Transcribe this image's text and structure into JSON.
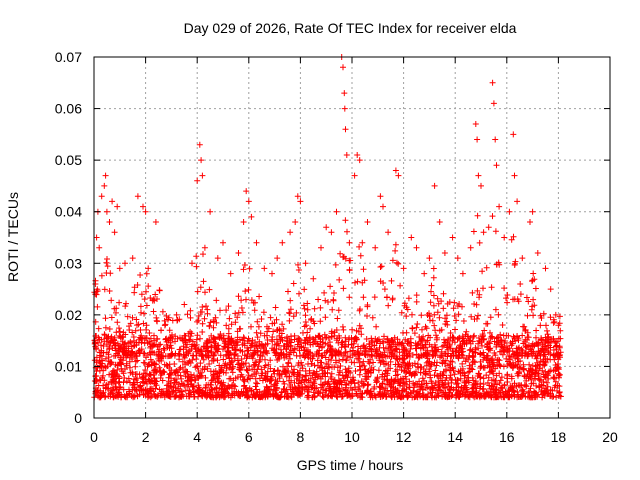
{
  "chart_data": {
    "type": "scatter",
    "title": "Day 029 of 2026, Rate Of TEC Index for receiver elda",
    "xlabel": "GPS time / hours",
    "ylabel": "ROTI / TECUs",
    "xlim": [
      0,
      20
    ],
    "ylim": [
      0,
      0.07
    ],
    "xticks": [
      0,
      2,
      4,
      6,
      8,
      10,
      12,
      14,
      16,
      18,
      20
    ],
    "yticks": [
      0,
      0.01,
      0.02,
      0.03,
      0.04,
      0.05,
      0.06,
      0.07
    ],
    "ytick_labels": [
      "0",
      "0.01",
      "0.02",
      "0.03",
      "0.04",
      "0.05",
      "0.06",
      "0.07"
    ],
    "grid": true,
    "marker": "plus",
    "color": "#ff0000",
    "data_range_x": [
      0,
      18.1
    ],
    "series": [
      {
        "name": "",
        "points": [
          [
            0.05,
            0.024
          ],
          [
            0.1,
            0.035
          ],
          [
            0.15,
            0.04
          ],
          [
            0.2,
            0.033
          ],
          [
            0.3,
            0.043
          ],
          [
            0.4,
            0.045
          ],
          [
            0.45,
            0.047
          ],
          [
            0.5,
            0.04
          ],
          [
            0.6,
            0.038
          ],
          [
            0.7,
            0.042
          ],
          [
            0.8,
            0.036
          ],
          [
            0.9,
            0.041
          ],
          [
            1.0,
            0.029
          ],
          [
            1.2,
            0.03
          ],
          [
            1.5,
            0.031
          ],
          [
            1.7,
            0.043
          ],
          [
            1.9,
            0.041
          ],
          [
            2.0,
            0.04
          ],
          [
            2.1,
            0.029
          ],
          [
            2.4,
            0.038
          ],
          [
            2.6,
            0.017
          ],
          [
            2.9,
            0.015
          ],
          [
            3.2,
            0.02
          ],
          [
            3.5,
            0.022
          ],
          [
            3.8,
            0.03
          ],
          [
            4.0,
            0.046
          ],
          [
            4.1,
            0.053
          ],
          [
            4.15,
            0.05
          ],
          [
            4.2,
            0.047
          ],
          [
            4.3,
            0.033
          ],
          [
            4.5,
            0.04
          ],
          [
            4.8,
            0.031
          ],
          [
            5.0,
            0.034
          ],
          [
            5.3,
            0.028
          ],
          [
            5.6,
            0.032
          ],
          [
            5.8,
            0.038
          ],
          [
            5.9,
            0.044
          ],
          [
            6.0,
            0.042
          ],
          [
            6.1,
            0.039
          ],
          [
            6.3,
            0.034
          ],
          [
            6.6,
            0.029
          ],
          [
            6.9,
            0.028
          ],
          [
            7.1,
            0.031
          ],
          [
            7.3,
            0.034
          ],
          [
            7.6,
            0.036
          ],
          [
            7.8,
            0.038
          ],
          [
            7.9,
            0.043
          ],
          [
            8.0,
            0.042
          ],
          [
            8.2,
            0.03
          ],
          [
            8.5,
            0.027
          ],
          [
            8.8,
            0.033
          ],
          [
            9.0,
            0.037
          ],
          [
            9.2,
            0.036
          ],
          [
            9.4,
            0.04
          ],
          [
            9.6,
            0.07
          ],
          [
            9.65,
            0.068
          ],
          [
            9.7,
            0.063
          ],
          [
            9.72,
            0.06
          ],
          [
            9.75,
            0.056
          ],
          [
            9.8,
            0.051
          ],
          [
            9.9,
            0.034
          ],
          [
            10.1,
            0.047
          ],
          [
            10.2,
            0.051
          ],
          [
            10.3,
            0.05
          ],
          [
            10.4,
            0.034
          ],
          [
            10.6,
            0.038
          ],
          [
            10.9,
            0.033
          ],
          [
            11.1,
            0.043
          ],
          [
            11.2,
            0.041
          ],
          [
            11.4,
            0.036
          ],
          [
            11.7,
            0.048
          ],
          [
            11.8,
            0.047
          ],
          [
            12.0,
            0.029
          ],
          [
            12.3,
            0.035
          ],
          [
            12.5,
            0.033
          ],
          [
            12.8,
            0.028
          ],
          [
            13.0,
            0.031
          ],
          [
            13.2,
            0.045
          ],
          [
            13.4,
            0.038
          ],
          [
            13.6,
            0.032
          ],
          [
            13.9,
            0.035
          ],
          [
            14.1,
            0.031
          ],
          [
            14.3,
            0.028
          ],
          [
            14.6,
            0.033
          ],
          [
            14.8,
            0.057
          ],
          [
            14.85,
            0.054
          ],
          [
            14.9,
            0.047
          ],
          [
            15.0,
            0.045
          ],
          [
            15.1,
            0.036
          ],
          [
            15.3,
            0.037
          ],
          [
            15.45,
            0.065
          ],
          [
            15.5,
            0.061
          ],
          [
            15.55,
            0.054
          ],
          [
            15.6,
            0.049
          ],
          [
            15.7,
            0.041
          ],
          [
            15.9,
            0.035
          ],
          [
            16.1,
            0.04
          ],
          [
            16.25,
            0.055
          ],
          [
            16.3,
            0.047
          ],
          [
            16.4,
            0.042
          ],
          [
            16.6,
            0.031
          ],
          [
            16.9,
            0.038
          ],
          [
            17.0,
            0.04
          ],
          [
            17.2,
            0.032
          ],
          [
            17.5,
            0.029
          ],
          [
            17.7,
            0.025
          ],
          [
            17.9,
            0.02
          ],
          [
            18.0,
            0.018
          ]
        ]
      }
    ],
    "envelope_note_values": {
      "baseline_min": 0.004,
      "baseline_typical_max": 0.02
    }
  }
}
